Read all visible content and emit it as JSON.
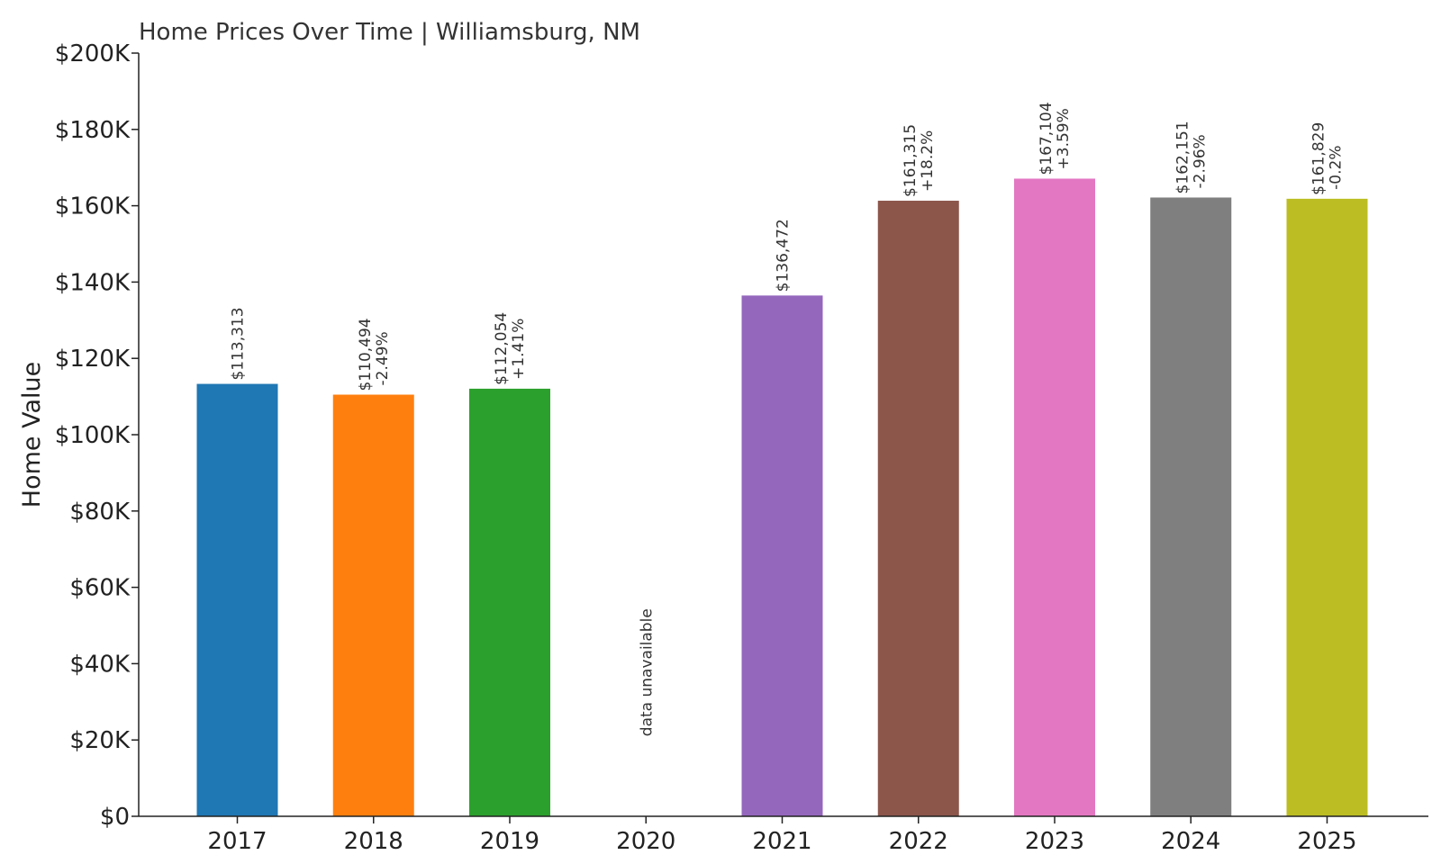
{
  "chart_data": {
    "type": "bar",
    "title": "Home Prices Over Time | Williamsburg, NM",
    "xlabel": "",
    "ylabel": "Home Value",
    "ylim": [
      0,
      200000
    ],
    "y_ticks": [
      {
        "value": 0,
        "label": "$0"
      },
      {
        "value": 20000,
        "label": "$20K"
      },
      {
        "value": 40000,
        "label": "$40K"
      },
      {
        "value": 60000,
        "label": "$60K"
      },
      {
        "value": 80000,
        "label": "$80K"
      },
      {
        "value": 100000,
        "label": "$100K"
      },
      {
        "value": 120000,
        "label": "$120K"
      },
      {
        "value": 140000,
        "label": "$140K"
      },
      {
        "value": 160000,
        "label": "$160K"
      },
      {
        "value": 180000,
        "label": "$180K"
      },
      {
        "value": 200000,
        "label": "$200K"
      }
    ],
    "categories": [
      "2017",
      "2018",
      "2019",
      "2020",
      "2021",
      "2022",
      "2023",
      "2024",
      "2025"
    ],
    "values": [
      113313,
      110494,
      112054,
      null,
      136472,
      161315,
      167104,
      162151,
      161829
    ],
    "value_labels": [
      "$113,313",
      "$110,494",
      "$112,054",
      null,
      "$136,472",
      "$161,315",
      "$167,104",
      "$162,151",
      "$161,829"
    ],
    "change_labels": [
      null,
      "-2.49%",
      "+1.41%",
      null,
      null,
      "+18.2%",
      "+3.59%",
      "-2.96%",
      "-0.2%"
    ],
    "missing_label": "data unavailable",
    "colors": [
      "#1f77b4",
      "#ff7f0e",
      "#2ca02c",
      "#d62728",
      "#9467bd",
      "#8c564b",
      "#e377c2",
      "#7f7f7f",
      "#bcbd22"
    ],
    "grid": false,
    "legend": "none"
  }
}
